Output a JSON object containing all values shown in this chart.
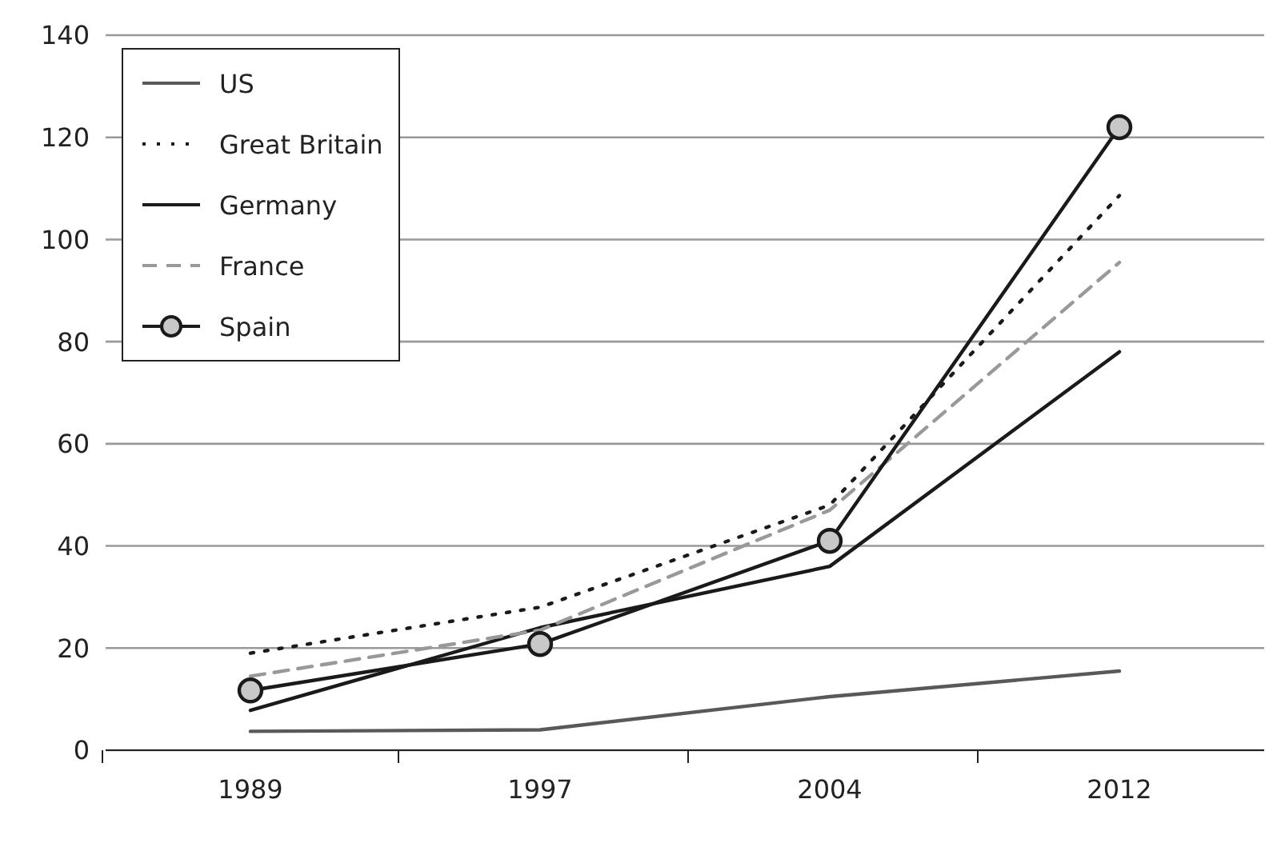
{
  "chart_data": {
    "type": "line",
    "categories": [
      "1989",
      "1997",
      "2004",
      "2012"
    ],
    "series": [
      {
        "name": "US",
        "color": "#595959",
        "line_style": "solid",
        "marker": "none",
        "values": [
          3.7,
          4,
          10.5,
          15.5
        ]
      },
      {
        "name": "Great Britain",
        "color": "#1a1a1a",
        "line_style": "dotted",
        "marker": "none",
        "values": [
          19,
          28,
          48,
          108.6
        ]
      },
      {
        "name": "Germany",
        "color": "#1a1a1a",
        "line_style": "solid",
        "marker": "none",
        "values": [
          7.8,
          24,
          36,
          78
        ]
      },
      {
        "name": "France",
        "color": "#999999",
        "line_style": "dashed",
        "marker": "none",
        "values": [
          14.5,
          23.5,
          47,
          95.5
        ]
      },
      {
        "name": "Spain",
        "color": "#1a1a1a",
        "line_style": "solid",
        "marker": "circle",
        "values": [
          11.7,
          20.8,
          41,
          122
        ]
      }
    ],
    "ylim": [
      0,
      140
    ],
    "yticks": [
      0,
      20,
      40,
      60,
      80,
      100,
      120,
      140
    ],
    "grid": "y",
    "legend": "top left"
  }
}
